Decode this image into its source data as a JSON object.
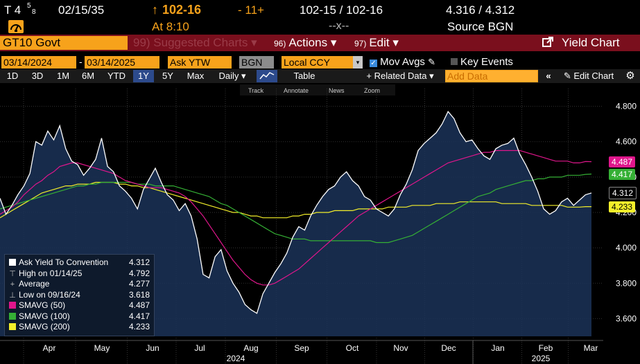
{
  "quote": {
    "security": "T 4",
    "coupon_frac_num": "5",
    "coupon_frac_den": "8",
    "maturity": "02/15/35",
    "arrow": "↑",
    "last_price": "102-16",
    "change": "- 11+",
    "bid_ask": "102-15 / 102-16",
    "yield_bid_ask": "4.316 / 4.312",
    "time_label": "At 8:10",
    "x_sep": "--x--",
    "source": "Source BGN"
  },
  "toolbar": {
    "ticker": "GT10 Govt",
    "suggested": "99) Suggested Charts ▾",
    "actions_num": "96)",
    "actions": "Actions ▾",
    "edit_num": "97)",
    "edit": "Edit ▾",
    "yield_chart": "Yield Chart"
  },
  "fields": {
    "start_date": "03/14/2024",
    "dash": "-",
    "end_date": "03/14/2025",
    "field": "Ask YTW",
    "source": "BGN",
    "currency": "Local CCY",
    "mov_avgs": "Mov Avgs",
    "key_events": "Key Events"
  },
  "ranges": {
    "items": [
      "1D",
      "3D",
      "1M",
      "6M",
      "YTD",
      "1Y",
      "5Y",
      "Max"
    ],
    "selected": "1Y",
    "period": "Daily ▾",
    "table": "Table",
    "related": "+ Related Data ▾",
    "add_data_placeholder": "Add Data",
    "edit_chart": "Edit Chart"
  },
  "chart_tools": [
    "Track",
    "Annotate",
    "News",
    "Zoom"
  ],
  "colors": {
    "price_line": "#ffffff",
    "area_fill": "#1b3358",
    "sma50": "#e0168c",
    "sma100": "#35b035",
    "sma200": "#f3ef2a",
    "orange": "#f7a21b"
  },
  "legend": [
    {
      "label": "Ask Yield To Convention",
      "value": "4.312",
      "marker": "square",
      "color": "#ffffff"
    },
    {
      "label": "High on 01/14/25",
      "value": "4.792",
      "marker": "high",
      "color": "#bbbbbb"
    },
    {
      "label": "Average",
      "value": "4.277",
      "marker": "avg",
      "color": "#bbbbbb"
    },
    {
      "label": "Low on 09/16/24",
      "value": "3.618",
      "marker": "low",
      "color": "#bbbbbb"
    },
    {
      "label": "SMAVG (50)",
      "value": "4.487",
      "marker": "square",
      "color": "#e0168c"
    },
    {
      "label": "SMAVG (100)",
      "value": "4.417",
      "marker": "square",
      "color": "#35b035"
    },
    {
      "label": "SMAVG (200)",
      "value": "4.233",
      "marker": "square",
      "color": "#f3ef2a"
    }
  ],
  "badges": [
    {
      "value": "4.487",
      "color": "#e0168c",
      "text_color": "#ffffff",
      "y": 4.487
    },
    {
      "value": "4.417",
      "color": "#35b035",
      "text_color": "#ffffff",
      "y": 4.417
    },
    {
      "value": "4.312",
      "color": "#000000",
      "text_color": "#ffffff",
      "y": 4.312
    },
    {
      "value": "4.233",
      "color": "#f3ef2a",
      "text_color": "#000000",
      "y": 4.233
    }
  ],
  "chart_data": {
    "type": "area",
    "title": "",
    "xlabel": "",
    "ylabel": "",
    "ylim": [
      3.5,
      4.9
    ],
    "yticks": [
      "4.800",
      "4.600",
      "4.400",
      "4.200",
      "4.000",
      "3.800",
      "3.600"
    ],
    "ytick_values": [
      4.8,
      4.6,
      4.4,
      4.2,
      4.0,
      3.8,
      3.6
    ],
    "month_labels": [
      "Apr",
      "May",
      "Jun",
      "Jul",
      "Aug",
      "Sep",
      "Oct",
      "Nov",
      "Dec",
      "Jan",
      "Feb",
      "Mar"
    ],
    "year_labels": [
      "2024",
      "2025"
    ],
    "x_index_range": [
      0,
      100
    ],
    "grid": true,
    "series": [
      {
        "name": "Ask Yield To Convention",
        "values": [
          4.28,
          4.19,
          4.24,
          4.3,
          4.35,
          4.42,
          4.6,
          4.58,
          4.66,
          4.61,
          4.69,
          4.56,
          4.49,
          4.47,
          4.41,
          4.45,
          4.5,
          4.62,
          4.46,
          4.43,
          4.35,
          4.32,
          4.28,
          4.22,
          4.33,
          4.39,
          4.45,
          4.37,
          4.3,
          4.27,
          4.21,
          4.25,
          4.18,
          4.05,
          3.85,
          3.83,
          3.95,
          3.99,
          3.87,
          3.8,
          3.75,
          3.68,
          3.65,
          3.63,
          3.74,
          3.8,
          3.86,
          3.91,
          3.97,
          4.06,
          4.12,
          4.1,
          4.18,
          4.24,
          4.29,
          4.33,
          4.35,
          4.4,
          4.43,
          4.38,
          4.35,
          4.29,
          4.27,
          4.22,
          4.2,
          4.18,
          4.22,
          4.3,
          4.36,
          4.44,
          4.55,
          4.59,
          4.62,
          4.65,
          4.7,
          4.77,
          4.73,
          4.65,
          4.6,
          4.61,
          4.56,
          4.52,
          4.5,
          4.56,
          4.58,
          4.59,
          4.62,
          4.53,
          4.47,
          4.4,
          4.32,
          4.22,
          4.19,
          4.21,
          4.26,
          4.28,
          4.24,
          4.27,
          4.3,
          4.31
        ]
      },
      {
        "name": "SMAVG (50)",
        "values": [
          4.19,
          4.21,
          4.23,
          4.26,
          4.3,
          4.33,
          4.36,
          4.38,
          4.41,
          4.43,
          4.46,
          4.47,
          4.48,
          4.48,
          4.47,
          4.46,
          4.45,
          4.44,
          4.43,
          4.42,
          4.4,
          4.38,
          4.37,
          4.36,
          4.35,
          4.34,
          4.34,
          4.34,
          4.33,
          4.32,
          4.31,
          4.29,
          4.26,
          4.22,
          4.18,
          4.13,
          4.08,
          4.03,
          3.98,
          3.93,
          3.89,
          3.85,
          3.82,
          3.8,
          3.79,
          3.79,
          3.8,
          3.82,
          3.84,
          3.86,
          3.88,
          3.91,
          3.94,
          3.97,
          4.0,
          4.03,
          4.06,
          4.09,
          4.12,
          4.15,
          4.18,
          4.2,
          4.22,
          4.24,
          4.26,
          4.28,
          4.3,
          4.32,
          4.34,
          4.36,
          4.38,
          4.4,
          4.42,
          4.44,
          4.46,
          4.48,
          4.49,
          4.5,
          4.51,
          4.52,
          4.53,
          4.54,
          4.54,
          4.55,
          4.55,
          4.55,
          4.55,
          4.55,
          4.54,
          4.53,
          4.52,
          4.51,
          4.5,
          4.49,
          4.49,
          4.49,
          4.48,
          4.48,
          4.488,
          4.487
        ]
      },
      {
        "name": "SMAVG (100)",
        "values": [
          4.22,
          4.23,
          4.24,
          4.25,
          4.26,
          4.27,
          4.28,
          4.29,
          4.3,
          4.31,
          4.32,
          4.33,
          4.34,
          4.35,
          4.35,
          4.36,
          4.36,
          4.37,
          4.37,
          4.37,
          4.37,
          4.37,
          4.37,
          4.36,
          4.36,
          4.36,
          4.35,
          4.35,
          4.35,
          4.35,
          4.34,
          4.33,
          4.32,
          4.31,
          4.3,
          4.29,
          4.27,
          4.25,
          4.24,
          4.22,
          4.2,
          4.18,
          4.16,
          4.14,
          4.12,
          4.1,
          4.08,
          4.07,
          4.06,
          4.05,
          4.05,
          4.05,
          4.04,
          4.04,
          4.04,
          4.04,
          4.04,
          4.04,
          4.04,
          4.04,
          4.04,
          4.04,
          4.04,
          4.03,
          4.03,
          4.03,
          4.04,
          4.05,
          4.06,
          4.07,
          4.09,
          4.11,
          4.13,
          4.15,
          4.17,
          4.19,
          4.21,
          4.23,
          4.25,
          4.27,
          4.29,
          4.3,
          4.31,
          4.33,
          4.34,
          4.35,
          4.36,
          4.37,
          4.38,
          4.38,
          4.39,
          4.39,
          4.4,
          4.4,
          4.4,
          4.41,
          4.41,
          4.41,
          4.415,
          4.417
        ]
      },
      {
        "name": "SMAVG (200)",
        "values": [
          4.17,
          4.19,
          4.21,
          4.23,
          4.25,
          4.27,
          4.29,
          4.31,
          4.32,
          4.33,
          4.34,
          4.35,
          4.35,
          4.36,
          4.36,
          4.36,
          4.37,
          4.37,
          4.37,
          4.37,
          4.36,
          4.36,
          4.35,
          4.35,
          4.34,
          4.34,
          4.33,
          4.32,
          4.31,
          4.3,
          4.29,
          4.28,
          4.27,
          4.26,
          4.25,
          4.24,
          4.23,
          4.22,
          4.21,
          4.2,
          4.2,
          4.19,
          4.18,
          4.18,
          4.17,
          4.17,
          4.17,
          4.17,
          4.17,
          4.18,
          4.18,
          4.19,
          4.19,
          4.2,
          4.2,
          4.2,
          4.21,
          4.21,
          4.21,
          4.21,
          4.22,
          4.22,
          4.22,
          4.22,
          4.22,
          4.23,
          4.23,
          4.23,
          4.23,
          4.24,
          4.24,
          4.24,
          4.24,
          4.25,
          4.25,
          4.25,
          4.25,
          4.26,
          4.26,
          4.26,
          4.26,
          4.26,
          4.26,
          4.26,
          4.25,
          4.25,
          4.25,
          4.25,
          4.25,
          4.24,
          4.24,
          4.24,
          4.24,
          4.24,
          4.24,
          4.23,
          4.23,
          4.23,
          4.233,
          4.233
        ]
      }
    ]
  }
}
